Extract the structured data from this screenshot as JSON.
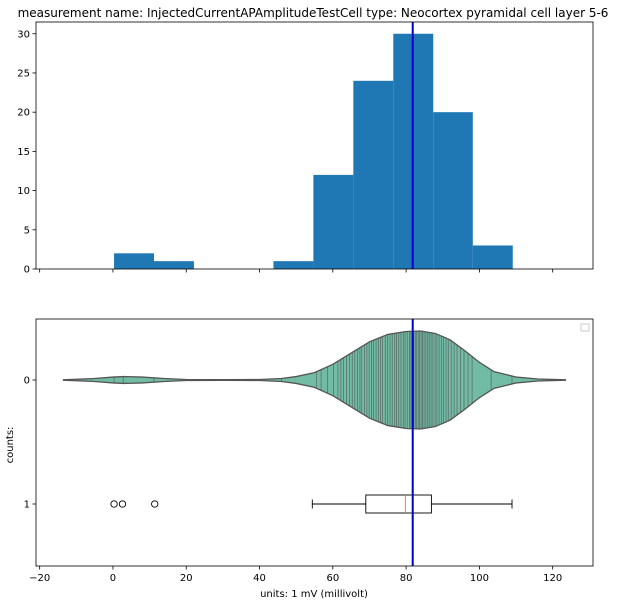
{
  "chart_data": [
    {
      "type": "bar",
      "title": "measurement name: InjectedCurrentAPAmplitudeTestCell type: Neocortex pyramidal cell layer 5-6",
      "xlabel": "",
      "ylabel": "",
      "xlim": [
        -21,
        131
      ],
      "ylim": [
        0,
        31.5
      ],
      "x_ticks": [
        -20,
        0,
        20,
        40,
        60,
        80,
        100,
        120
      ],
      "y_ticks": [
        0,
        5,
        10,
        15,
        20,
        25,
        30
      ],
      "y_tick_labels": [
        "0",
        "5",
        "10",
        "15",
        "20",
        "25",
        "30"
      ],
      "bins": [
        {
          "x0": 0.3,
          "x1": 11.2,
          "value": 2
        },
        {
          "x0": 11.2,
          "x1": 22.1,
          "value": 1
        },
        {
          "x0": 22.1,
          "x1": 33.0,
          "value": 0
        },
        {
          "x0": 33.0,
          "x1": 43.8,
          "value": 0
        },
        {
          "x0": 43.8,
          "x1": 54.7,
          "value": 1
        },
        {
          "x0": 54.7,
          "x1": 65.6,
          "value": 12
        },
        {
          "x0": 65.6,
          "x1": 76.5,
          "value": 24
        },
        {
          "x0": 76.5,
          "x1": 87.4,
          "value": 30
        },
        {
          "x0": 87.4,
          "x1": 98.2,
          "value": 20
        },
        {
          "x0": 98.2,
          "x1": 109.1,
          "value": 3
        }
      ],
      "bar_color": "#1f77b4",
      "vline": {
        "x": 81.8,
        "color": "#0000cc"
      }
    },
    {
      "type": "violin+box",
      "xlabel": "units: 1 mV (millivolt)",
      "ylabel": "counts:",
      "xlim": [
        -21,
        131
      ],
      "x_ticks": [
        -20,
        0,
        20,
        40,
        60,
        80,
        100,
        120
      ],
      "x_tick_labels": [
        "−20",
        "0",
        "20",
        "40",
        "60",
        "80",
        "100",
        "120"
      ],
      "y_tick_labels": [
        "0",
        "1"
      ],
      "violin": {
        "color": "#72bca5",
        "edge_color": "#555555",
        "x_min": -13.5,
        "x_max": 123.5,
        "profile_x": [
          -13.5,
          -5,
          0,
          3,
          8,
          14,
          20,
          30,
          40,
          46,
          50,
          55,
          60,
          65,
          70,
          75,
          80,
          84,
          88,
          92,
          96,
          100,
          104,
          110,
          116,
          123.5
        ],
        "profile_half_width": [
          0.004,
          0.03,
          0.06,
          0.07,
          0.06,
          0.03,
          0.01,
          0.006,
          0.01,
          0.03,
          0.07,
          0.15,
          0.32,
          0.55,
          0.78,
          0.93,
          0.99,
          1.0,
          0.95,
          0.82,
          0.6,
          0.36,
          0.17,
          0.06,
          0.02,
          0.004
        ],
        "sticks": [
          0.3,
          2.8,
          11.2,
          46,
          55.5,
          56.8,
          58.6,
          60.2,
          61.4,
          62.2,
          62.9,
          63.7,
          64.6,
          65.3,
          66.0,
          66.7,
          67.4,
          67.9,
          68.6,
          69.3,
          69.9,
          70.6,
          71.1,
          71.8,
          72.4,
          73.0,
          73.6,
          74.3,
          74.9,
          75.6,
          76.2,
          76.9,
          77.4,
          78.0,
          78.6,
          79.2,
          79.7,
          80.3,
          80.9,
          81.3,
          81.7,
          82.1,
          82.5,
          82.9,
          83.3,
          83.7,
          84.1,
          84.5,
          84.9,
          85.4,
          85.9,
          86.3,
          86.8,
          87.3,
          87.9,
          88.4,
          89.0,
          89.6,
          90.2,
          90.9,
          91.5,
          92.3,
          93.1,
          93.9,
          94.8,
          95.8,
          96.9,
          98.0,
          103.2,
          108.9
        ]
      },
      "box": {
        "whisker_low": 54.4,
        "q1": 69.0,
        "median": 79.8,
        "q3": 86.9,
        "whisker_high": 108.9,
        "outliers": [
          0.3,
          2.6,
          11.4
        ]
      },
      "vline": {
        "x": 81.8,
        "color": "#0000cc"
      }
    }
  ]
}
